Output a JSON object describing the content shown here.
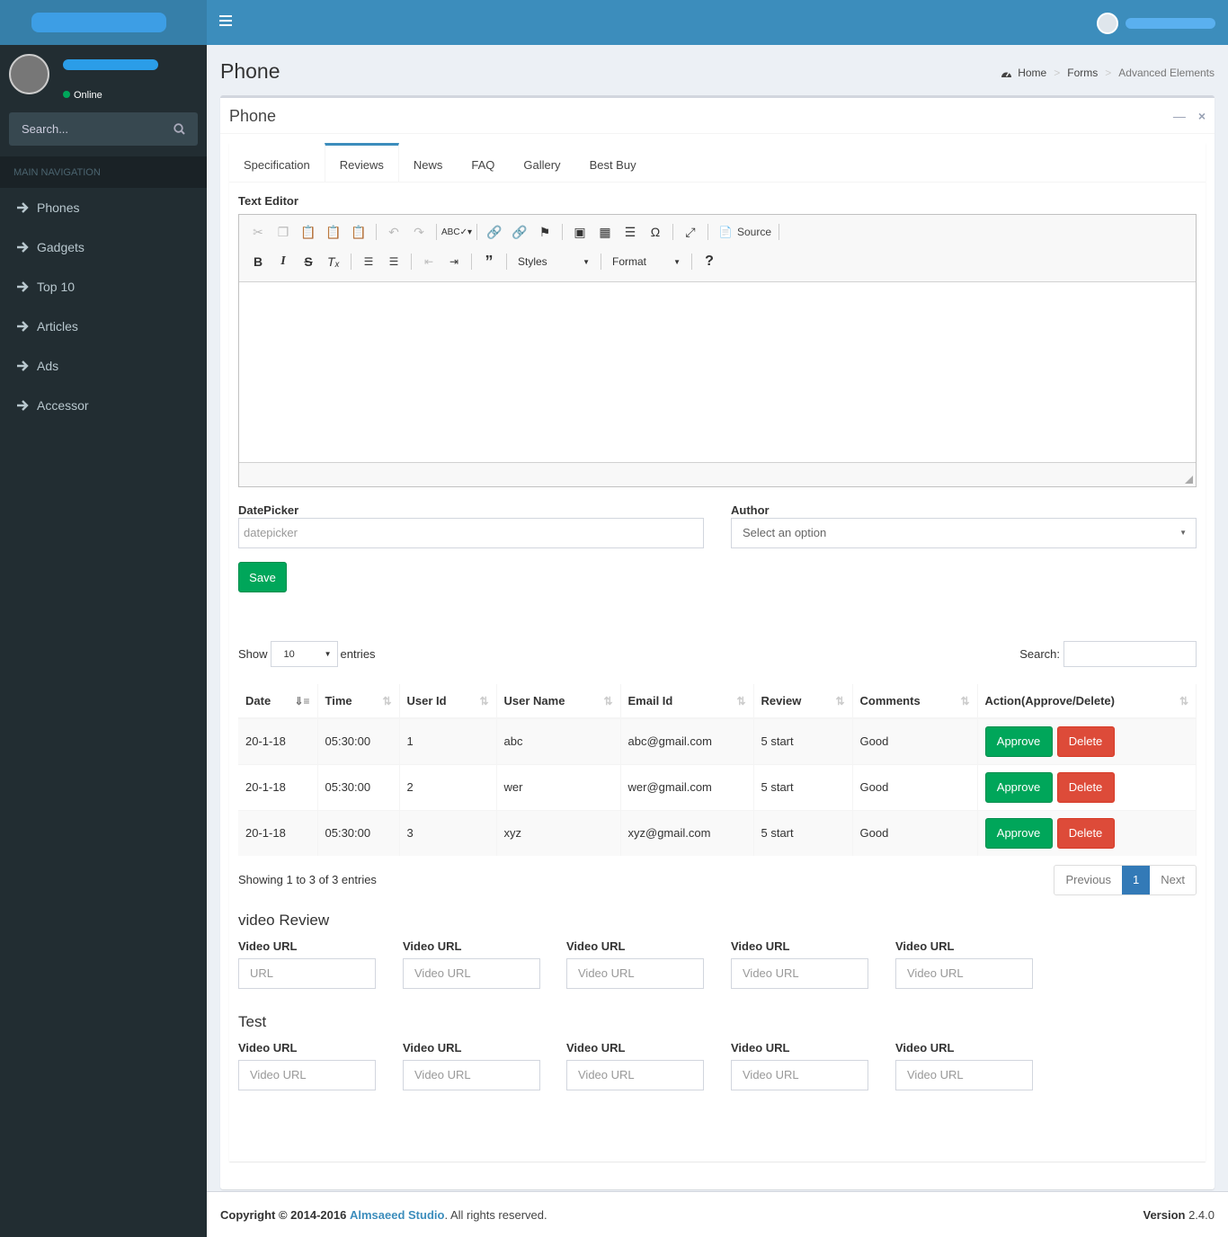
{
  "sidebar": {
    "status": "Online",
    "search_placeholder": "Search...",
    "header": "MAIN NAVIGATION",
    "items": [
      "Phones",
      "Gadgets",
      "Top 10",
      "Articles",
      "Ads",
      "Accessor"
    ]
  },
  "page": {
    "title": "Phone",
    "breadcrumb": [
      "Home",
      "Forms",
      "Advanced Elements"
    ]
  },
  "box": {
    "title": "Phone",
    "tabs": [
      "Specification",
      "Reviews",
      "News",
      "FAQ",
      "Gallery",
      "Best Buy"
    ],
    "active_tab": "Reviews"
  },
  "editor": {
    "label": "Text Editor",
    "source_label": "Source",
    "styles_label": "Styles",
    "format_label": "Format"
  },
  "form": {
    "date_label": "DatePicker",
    "date_placeholder": "datepicker",
    "author_label": "Author",
    "author_placeholder": "Select an option",
    "save_label": "Save"
  },
  "table": {
    "show_label": "Show",
    "entries_label": "entries",
    "page_size": "10",
    "search_label": "Search:",
    "columns": [
      "Date",
      "Time",
      "User Id",
      "User Name",
      "Email Id",
      "Review",
      "Comments",
      "Action(Approve/Delete)"
    ],
    "rows": [
      [
        "20-1-18",
        "05:30:00",
        "1",
        "abc",
        "abc@gmail.com",
        "5 start",
        "Good"
      ],
      [
        "20-1-18",
        "05:30:00",
        "2",
        "wer",
        "wer@gmail.com",
        "5 start",
        "Good"
      ],
      [
        "20-1-18",
        "05:30:00",
        "3",
        "xyz",
        "xyz@gmail.com",
        "5 start",
        "Good"
      ]
    ],
    "approve_label": "Approve",
    "delete_label": "Delete",
    "info": "Showing 1 to 3 of 3 entries",
    "prev_label": "Previous",
    "current_page": "1",
    "next_label": "Next"
  },
  "video_review": {
    "title": "video Review",
    "field_label": "Video URL",
    "placeholders": [
      "URL",
      "Video URL",
      "Video URL",
      "Video URL",
      "Video URL"
    ]
  },
  "test": {
    "title": "Test",
    "field_label": "Video URL",
    "placeholders": [
      "Video URL",
      "Video URL",
      "Video URL",
      "Video URL",
      "Video URL"
    ]
  },
  "footer": {
    "copyright": "Copyright © 2014-2016",
    "brand": "Almsaeed Studio",
    "rights": "All rights reserved.",
    "version_label": "Version",
    "version": "2.4.0"
  },
  "colors": {
    "primary": "#3c8dbc",
    "sidebar": "#222d32",
    "success": "#00a65a",
    "danger": "#dd4b39"
  }
}
